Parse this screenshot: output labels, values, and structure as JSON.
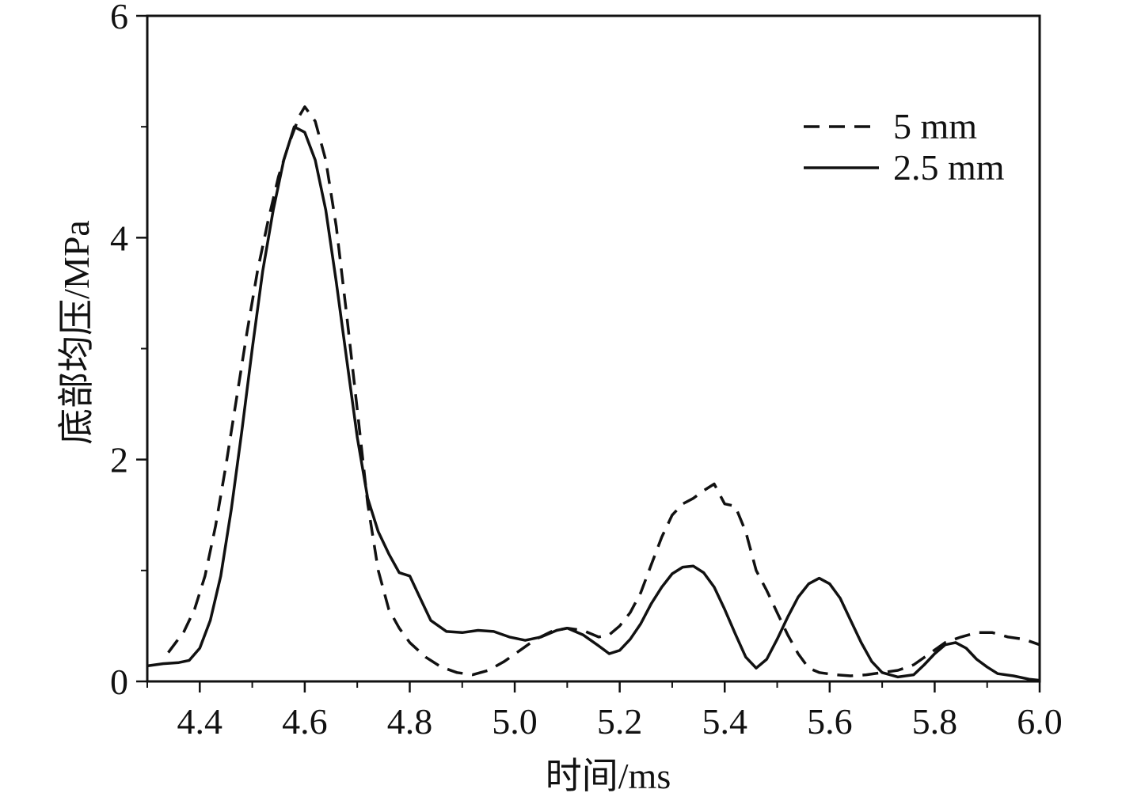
{
  "chart_data": {
    "type": "line",
    "title": "",
    "xlabel": "时间/ms",
    "ylabel": "底部均压/MPa",
    "xlim": [
      4.3,
      6.0
    ],
    "ylim": [
      0,
      6
    ],
    "x_ticks": [
      {
        "value": 4.4,
        "label": "4.4"
      },
      {
        "value": 4.6,
        "label": "4.6"
      },
      {
        "value": 4.8,
        "label": "4.8"
      },
      {
        "value": 5.0,
        "label": "5.0"
      },
      {
        "value": 5.2,
        "label": "5.2"
      },
      {
        "value": 5.4,
        "label": "5.4"
      },
      {
        "value": 5.6,
        "label": "5.6"
      },
      {
        "value": 5.8,
        "label": "5.8"
      },
      {
        "value": 6.0,
        "label": "6.0"
      }
    ],
    "y_ticks": [
      {
        "value": 0,
        "label": "0"
      },
      {
        "value": 2,
        "label": "2"
      },
      {
        "value": 4,
        "label": "4"
      },
      {
        "value": 6,
        "label": "6"
      }
    ],
    "grid": false,
    "legend": {
      "position": "top-right"
    },
    "series": [
      {
        "name": "5 mm",
        "style": "dashed",
        "color": "#111111",
        "points": [
          [
            4.34,
            0.26
          ],
          [
            4.37,
            0.45
          ],
          [
            4.39,
            0.65
          ],
          [
            4.41,
            0.95
          ],
          [
            4.43,
            1.4
          ],
          [
            4.45,
            1.95
          ],
          [
            4.47,
            2.55
          ],
          [
            4.49,
            3.15
          ],
          [
            4.51,
            3.7
          ],
          [
            4.53,
            4.15
          ],
          [
            4.55,
            4.55
          ],
          [
            4.57,
            4.85
          ],
          [
            4.59,
            5.1
          ],
          [
            4.6,
            5.18
          ],
          [
            4.62,
            5.05
          ],
          [
            4.64,
            4.7
          ],
          [
            4.66,
            4.1
          ],
          [
            4.68,
            3.3
          ],
          [
            4.7,
            2.45
          ],
          [
            4.72,
            1.6
          ],
          [
            4.74,
            1.0
          ],
          [
            4.76,
            0.65
          ],
          [
            4.78,
            0.48
          ],
          [
            4.8,
            0.35
          ],
          [
            4.83,
            0.22
          ],
          [
            4.86,
            0.13
          ],
          [
            4.89,
            0.08
          ],
          [
            4.92,
            0.06
          ],
          [
            4.95,
            0.1
          ],
          [
            4.98,
            0.18
          ],
          [
            5.01,
            0.28
          ],
          [
            5.04,
            0.38
          ],
          [
            5.07,
            0.45
          ],
          [
            5.1,
            0.48
          ],
          [
            5.13,
            0.46
          ],
          [
            5.16,
            0.4
          ],
          [
            5.18,
            0.42
          ],
          [
            5.2,
            0.5
          ],
          [
            5.22,
            0.62
          ],
          [
            5.24,
            0.8
          ],
          [
            5.26,
            1.05
          ],
          [
            5.28,
            1.3
          ],
          [
            5.3,
            1.5
          ],
          [
            5.32,
            1.6
          ],
          [
            5.34,
            1.65
          ],
          [
            5.36,
            1.72
          ],
          [
            5.38,
            1.78
          ],
          [
            5.4,
            1.6
          ],
          [
            5.42,
            1.58
          ],
          [
            5.44,
            1.35
          ],
          [
            5.46,
            1.0
          ],
          [
            5.48,
            0.82
          ],
          [
            5.5,
            0.62
          ],
          [
            5.52,
            0.42
          ],
          [
            5.54,
            0.25
          ],
          [
            5.56,
            0.12
          ],
          [
            5.58,
            0.08
          ],
          [
            5.61,
            0.06
          ],
          [
            5.64,
            0.05
          ],
          [
            5.67,
            0.06
          ],
          [
            5.7,
            0.08
          ],
          [
            5.73,
            0.1
          ],
          [
            5.76,
            0.15
          ],
          [
            5.79,
            0.25
          ],
          [
            5.82,
            0.35
          ],
          [
            5.85,
            0.4
          ],
          [
            5.88,
            0.44
          ],
          [
            5.91,
            0.44
          ],
          [
            5.94,
            0.4
          ],
          [
            5.97,
            0.38
          ],
          [
            6.0,
            0.33
          ]
        ]
      },
      {
        "name": "2.5 mm",
        "style": "solid",
        "color": "#111111",
        "points": [
          [
            4.3,
            0.14
          ],
          [
            4.33,
            0.16
          ],
          [
            4.36,
            0.17
          ],
          [
            4.38,
            0.19
          ],
          [
            4.4,
            0.3
          ],
          [
            4.42,
            0.55
          ],
          [
            4.44,
            0.95
          ],
          [
            4.46,
            1.55
          ],
          [
            4.48,
            2.25
          ],
          [
            4.5,
            3.0
          ],
          [
            4.52,
            3.7
          ],
          [
            4.54,
            4.25
          ],
          [
            4.56,
            4.7
          ],
          [
            4.58,
            5.0
          ],
          [
            4.6,
            4.95
          ],
          [
            4.62,
            4.7
          ],
          [
            4.64,
            4.25
          ],
          [
            4.66,
            3.6
          ],
          [
            4.68,
            2.9
          ],
          [
            4.7,
            2.2
          ],
          [
            4.72,
            1.65
          ],
          [
            4.74,
            1.35
          ],
          [
            4.76,
            1.15
          ],
          [
            4.78,
            0.98
          ],
          [
            4.8,
            0.95
          ],
          [
            4.82,
            0.75
          ],
          [
            4.84,
            0.55
          ],
          [
            4.87,
            0.45
          ],
          [
            4.9,
            0.44
          ],
          [
            4.93,
            0.46
          ],
          [
            4.96,
            0.45
          ],
          [
            4.99,
            0.4
          ],
          [
            5.02,
            0.37
          ],
          [
            5.05,
            0.4
          ],
          [
            5.08,
            0.46
          ],
          [
            5.1,
            0.48
          ],
          [
            5.13,
            0.42
          ],
          [
            5.16,
            0.32
          ],
          [
            5.18,
            0.25
          ],
          [
            5.2,
            0.28
          ],
          [
            5.22,
            0.38
          ],
          [
            5.24,
            0.52
          ],
          [
            5.26,
            0.7
          ],
          [
            5.28,
            0.85
          ],
          [
            5.3,
            0.97
          ],
          [
            5.32,
            1.03
          ],
          [
            5.34,
            1.04
          ],
          [
            5.36,
            0.98
          ],
          [
            5.38,
            0.85
          ],
          [
            5.4,
            0.65
          ],
          [
            5.42,
            0.43
          ],
          [
            5.44,
            0.22
          ],
          [
            5.46,
            0.12
          ],
          [
            5.48,
            0.2
          ],
          [
            5.5,
            0.38
          ],
          [
            5.52,
            0.58
          ],
          [
            5.54,
            0.76
          ],
          [
            5.56,
            0.88
          ],
          [
            5.58,
            0.93
          ],
          [
            5.6,
            0.88
          ],
          [
            5.62,
            0.75
          ],
          [
            5.64,
            0.55
          ],
          [
            5.66,
            0.35
          ],
          [
            5.68,
            0.18
          ],
          [
            5.7,
            0.08
          ],
          [
            5.73,
            0.04
          ],
          [
            5.76,
            0.06
          ],
          [
            5.78,
            0.15
          ],
          [
            5.8,
            0.25
          ],
          [
            5.82,
            0.33
          ],
          [
            5.84,
            0.35
          ],
          [
            5.86,
            0.3
          ],
          [
            5.88,
            0.2
          ],
          [
            5.9,
            0.13
          ],
          [
            5.92,
            0.07
          ],
          [
            5.95,
            0.05
          ],
          [
            5.98,
            0.02
          ],
          [
            6.0,
            0.01
          ]
        ]
      }
    ]
  }
}
